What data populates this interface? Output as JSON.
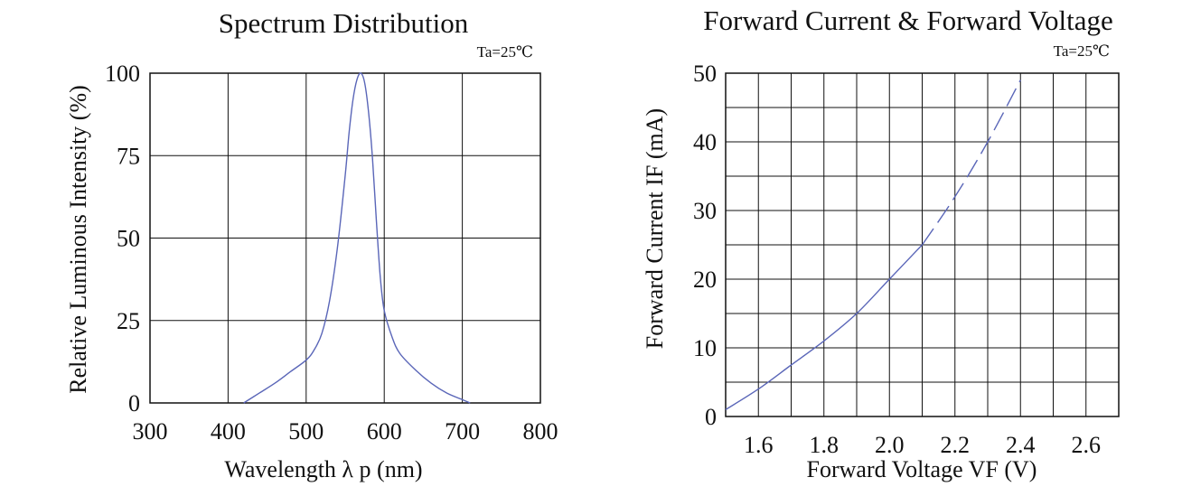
{
  "chart_data": [
    {
      "type": "line",
      "title": "Spectrum Distribution",
      "condition": "Ta=25℃",
      "xlabel": "Wavelength λ p (nm)",
      "ylabel": "Relative Luminous Intensity (%)",
      "xlim": [
        300,
        800
      ],
      "ylim": [
        0,
        100
      ],
      "xticks": [
        "300",
        "400",
        "500",
        "600",
        "700",
        "800"
      ],
      "yticks": [
        "0",
        "25",
        "50",
        "75",
        "100"
      ],
      "grid": true,
      "series": [
        {
          "color": "#5a66b8",
          "style": "solid",
          "x": [
            420,
            440,
            460,
            480,
            500,
            510,
            520,
            530,
            540,
            550,
            555,
            560,
            565,
            570,
            575,
            580,
            585,
            590,
            595,
            600,
            610,
            620,
            640,
            660,
            680,
            700,
            710
          ],
          "y": [
            0,
            3,
            6,
            9.5,
            13,
            16,
            21,
            31,
            47,
            69,
            82,
            92,
            98,
            100,
            97,
            88,
            74,
            55,
            38,
            28,
            20,
            15,
            10,
            6,
            3,
            1,
            0
          ]
        }
      ]
    },
    {
      "type": "line",
      "title": "Forward Current & Forward Voltage",
      "condition": "Ta=25℃",
      "xlabel": "Forward Voltage  VF (V)",
      "ylabel": "Forward Current IF (mA)",
      "xlim": [
        1.5,
        2.7
      ],
      "ylim": [
        0,
        50
      ],
      "xticks": [
        "1.6",
        "1.8",
        "2.0",
        "2.2",
        "2.4",
        "2.6"
      ],
      "yticks": [
        "0",
        "10",
        "20",
        "30",
        "40",
        "50"
      ],
      "grid": true,
      "series": [
        {
          "color": "#5a66b8",
          "style": "solid",
          "x": [
            1.5,
            1.6,
            1.7,
            1.8,
            1.9,
            2.0,
            2.1
          ],
          "y": [
            1,
            4,
            7.5,
            11,
            15,
            20,
            25
          ]
        },
        {
          "color": "#5a66b8",
          "style": "dashed",
          "x": [
            2.1,
            2.2,
            2.3,
            2.4
          ],
          "y": [
            25,
            32,
            40,
            49
          ]
        }
      ]
    }
  ]
}
